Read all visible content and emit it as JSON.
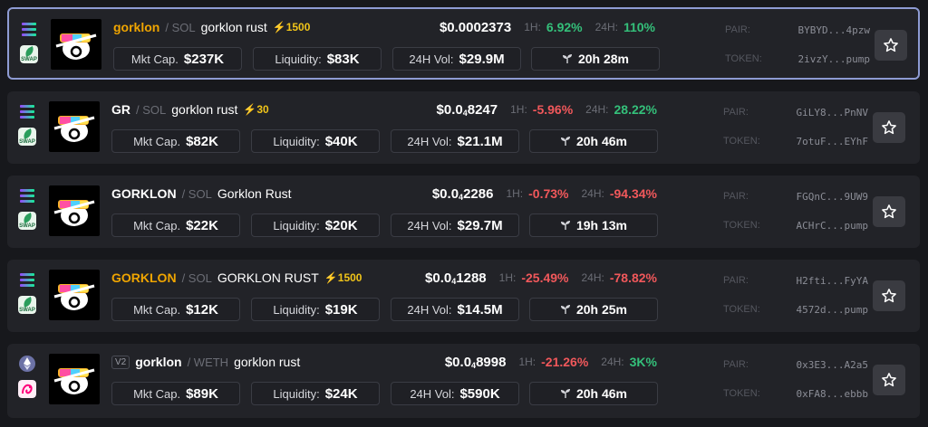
{
  "rows": [
    {
      "symbol": "gorklon",
      "symbol_color": "#f0a500",
      "quote": "SOL",
      "name": "gorklon rust",
      "boost": "⚡1500",
      "version": "",
      "price_prefix": "$0.0002373",
      "price_sub": "",
      "price_suffix": "",
      "h1_label": "1H:",
      "h1": "6.92%",
      "h1_dir": "pos",
      "h24_label": "24H:",
      "h24": "110%",
      "h24_dir": "pos",
      "mktcap_label": "Mkt Cap.",
      "mktcap": "$237K",
      "liq_label": "Liquidity:",
      "liq": "$83K",
      "vol_label": "24H Vol:",
      "vol": "$29.9M",
      "age": "20h 28m",
      "pair_label": "PAIR:",
      "pair": "BYBYD...4pzw",
      "token_label": "TOKEN:",
      "token": "2ivzY...pump",
      "chain": "solana",
      "dex": "raydium-swap"
    },
    {
      "symbol": "GR",
      "symbol_color": "#ffffff",
      "quote": "SOL",
      "name": "gorklon rust",
      "boost": "⚡30",
      "version": "",
      "price_prefix": "$0.0",
      "price_sub": "4",
      "price_suffix": "8247",
      "h1_label": "1H:",
      "h1": "-5.96%",
      "h1_dir": "neg",
      "h24_label": "24H:",
      "h24": "28.22%",
      "h24_dir": "pos",
      "mktcap_label": "Mkt Cap.",
      "mktcap": "$82K",
      "liq_label": "Liquidity:",
      "liq": "$40K",
      "vol_label": "24H Vol:",
      "vol": "$21.1M",
      "age": "20h 46m",
      "pair_label": "PAIR:",
      "pair": "GiLY8...PnNV",
      "token_label": "TOKEN:",
      "token": "7otuF...EYhF",
      "chain": "solana",
      "dex": "raydium-swap"
    },
    {
      "symbol": "GORKLON",
      "symbol_color": "#ffffff",
      "quote": "SOL",
      "name": "Gorklon Rust",
      "boost": "",
      "version": "",
      "price_prefix": "$0.0",
      "price_sub": "4",
      "price_suffix": "2286",
      "h1_label": "1H:",
      "h1": "-0.73%",
      "h1_dir": "neg",
      "h24_label": "24H:",
      "h24": "-94.34%",
      "h24_dir": "neg",
      "mktcap_label": "Mkt Cap.",
      "mktcap": "$22K",
      "liq_label": "Liquidity:",
      "liq": "$20K",
      "vol_label": "24H Vol:",
      "vol": "$29.7M",
      "age": "19h 13m",
      "pair_label": "PAIR:",
      "pair": "FGQnC...9UW9",
      "token_label": "TOKEN:",
      "token": "ACHrC...pump",
      "chain": "solana",
      "dex": "raydium-swap"
    },
    {
      "symbol": "GORKLON",
      "symbol_color": "#f0a500",
      "quote": "SOL",
      "name": "GORKLON RUST",
      "boost": "⚡1500",
      "version": "",
      "price_prefix": "$0.0",
      "price_sub": "4",
      "price_suffix": "1288",
      "h1_label": "1H:",
      "h1": "-25.49%",
      "h1_dir": "neg",
      "h24_label": "24H:",
      "h24": "-78.82%",
      "h24_dir": "neg",
      "mktcap_label": "Mkt Cap.",
      "mktcap": "$12K",
      "liq_label": "Liquidity:",
      "liq": "$19K",
      "vol_label": "24H Vol:",
      "vol": "$14.5M",
      "age": "20h 25m",
      "pair_label": "PAIR:",
      "pair": "H2fti...FyYA",
      "token_label": "TOKEN:",
      "token": "4572d...pump",
      "chain": "solana",
      "dex": "raydium-swap"
    },
    {
      "symbol": "gorklon",
      "symbol_color": "#ffffff",
      "quote": "WETH",
      "name": "gorklon rust",
      "boost": "",
      "version": "V2",
      "price_prefix": "$0.0",
      "price_sub": "4",
      "price_suffix": "8998",
      "h1_label": "1H:",
      "h1": "-21.26%",
      "h1_dir": "neg",
      "h24_label": "24H:",
      "h24": "3K%",
      "h24_dir": "pos",
      "mktcap_label": "Mkt Cap.",
      "mktcap": "$89K",
      "liq_label": "Liquidity:",
      "liq": "$24K",
      "vol_label": "24H Vol:",
      "vol": "$590K",
      "age": "20h 46m",
      "pair_label": "PAIR:",
      "pair": "0x3E3...A2a5",
      "token_label": "TOKEN:",
      "token": "0xFA8...ebbb",
      "chain": "ethereum",
      "dex": "uniswap"
    }
  ],
  "colors": {
    "positive": "#34c07a",
    "negative": "#f1585b",
    "boost": "#f0c419",
    "selected_border": "#8e9bd3"
  }
}
